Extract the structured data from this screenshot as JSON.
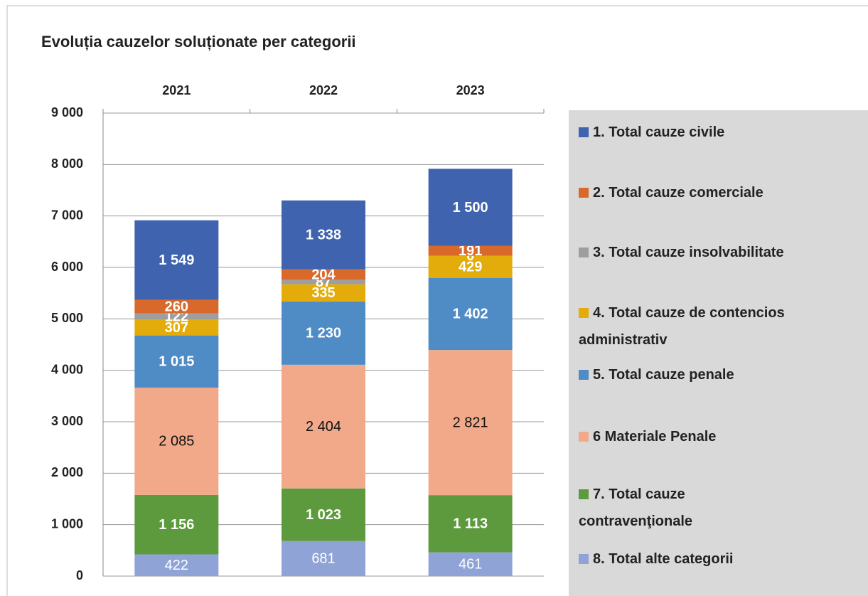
{
  "chart_data": {
    "type": "stacked_bar",
    "title": "Evoluția cauzelor soluționate per categorii",
    "categories": [
      "2021",
      "2022",
      "2023"
    ],
    "series": [
      {
        "name": "1. Total cauze civile",
        "color": "#3f63ae",
        "values": [
          1549,
          1338,
          1500
        ],
        "value_labels": [
          "1 549",
          "1 338",
          "1 500"
        ]
      },
      {
        "name": "2. Total cauze comerciale",
        "color": "#d9692b",
        "values": [
          260,
          204,
          191
        ]
      },
      {
        "name": "3. Total cauze insolvabilitate",
        "color": "#9e9e9e",
        "values": [
          122,
          87,
          0
        ]
      },
      {
        "name": "4. Total cauze de contencios administrativ",
        "color": "#e3ac0a",
        "values": [
          307,
          335,
          429
        ]
      },
      {
        "name": "5. Total cauze penale",
        "color": "#4f8bc4",
        "values": [
          1015,
          1230,
          1402
        ],
        "value_labels": [
          "1 015",
          "1 230",
          "1 402"
        ]
      },
      {
        "name": "6 Materiale Penale",
        "color": "#f1a98a",
        "values": [
          2085,
          2404,
          2821
        ],
        "value_labels": [
          "2 085",
          "2 404",
          "2 821"
        ]
      },
      {
        "name": "7. Total cauze contravenţionale",
        "color": "#5d9a3d",
        "values": [
          1156,
          1023,
          1113
        ],
        "value_labels": [
          "1 156",
          "1 023",
          "1 113"
        ]
      },
      {
        "name": "8. Total alte categorii",
        "color": "#8fa3d6",
        "values": [
          422,
          681,
          461
        ]
      }
    ],
    "ylim": [
      0,
      9000
    ],
    "yticks": [
      0,
      {
        "value": 1000,
        "label": "1 000"
      },
      {
        "value": 2000,
        "label": "2 000"
      },
      {
        "value": 3000,
        "label": "3 000"
      },
      {
        "value": 4000,
        "label": "4 000"
      },
      {
        "value": 5000,
        "label": "5 000"
      },
      {
        "value": 6000,
        "label": "6 000"
      },
      {
        "value": 7000,
        "label": "7 000"
      },
      {
        "value": 8000,
        "label": "8 000"
      },
      {
        "value": 9000,
        "label": "9 000"
      }
    ],
    "grid": true,
    "legend": "right"
  }
}
